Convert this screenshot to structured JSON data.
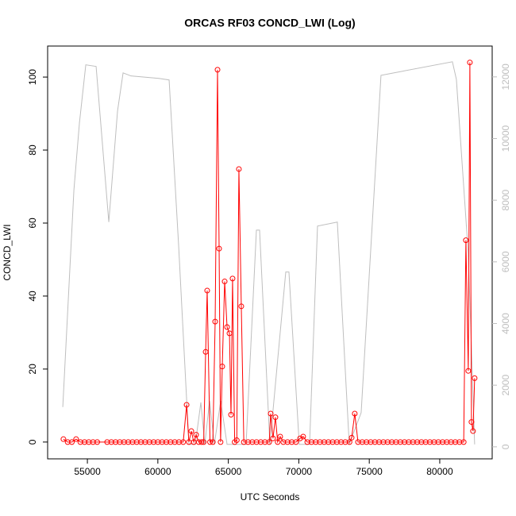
{
  "chart_data": {
    "type": "line",
    "title": "ORCAS RF03 CONCD_LWI (Log)",
    "x_label": "UTC Seconds",
    "y_label": "CONCD_LWI",
    "xlim": [
      52180,
      83720
    ],
    "xticks": [
      55000,
      60000,
      65000,
      70000,
      75000,
      80000
    ],
    "ylim": [
      -4.6,
      108.5
    ],
    "yticks": [
      0,
      20,
      40,
      60,
      80,
      100
    ],
    "y2lim": [
      -390,
      13000
    ],
    "y2ticks": [
      0,
      2000,
      4000,
      6000,
      8000,
      10000,
      12000
    ],
    "series": [
      {
        "color": "#bebebe",
        "axis": "y2",
        "x": [
          53255,
          54043,
          54437,
          54887,
          55619,
          56520,
          57139,
          57533,
          58097,
          60067,
          60799,
          61475,
          62206,
          62657,
          63051,
          63332,
          63670,
          64008,
          64458,
          64909,
          66260,
          66992,
          67217,
          67949,
          69075,
          69300,
          70032,
          70764,
          71327,
          72734,
          73579,
          74424,
          75831,
          76394,
          80898,
          81180,
          82025,
          82475
        ],
        "values": [
          1290,
          8320,
          10510,
          12390,
          12340,
          7290,
          10890,
          12130,
          12030,
          11950,
          11900,
          6520,
          80,
          80,
          1440,
          80,
          1490,
          80,
          1490,
          80,
          80,
          7030,
          7030,
          80,
          5670,
          5670,
          80,
          80,
          7160,
          7290,
          80,
          1110,
          12050,
          12100,
          12490,
          11920,
          6260,
          80
        ]
      },
      {
        "color": "#ff0000",
        "marker": "circle",
        "x": [
          53300,
          53600,
          53900,
          54200,
          54500,
          54800,
          55100,
          55400,
          55700,
          56400,
          56700,
          57000,
          57300,
          57600,
          57900,
          58200,
          58500,
          58800,
          59100,
          59400,
          59700,
          60000,
          60300,
          60600,
          60900,
          61200,
          61500,
          61800,
          62040,
          62200,
          62375,
          62550,
          62713,
          62900,
          63100,
          63250,
          63390,
          63500,
          63700,
          63900,
          64065,
          64233,
          64346,
          64450,
          64570,
          64740,
          64910,
          65080,
          65190,
          65300,
          65450,
          65600,
          65750,
          65920,
          66100,
          66400,
          66700,
          67000,
          67300,
          67600,
          67900,
          68005,
          68170,
          68340,
          68500,
          68680,
          68900,
          69200,
          69500,
          69800,
          70090,
          70310,
          70600,
          70900,
          71200,
          71500,
          71800,
          72100,
          72400,
          72700,
          73000,
          73300,
          73600,
          73750,
          73970,
          74200,
          74500,
          74800,
          75100,
          75400,
          75700,
          76000,
          76300,
          76600,
          76900,
          77200,
          77500,
          77800,
          78100,
          78400,
          78700,
          79000,
          79300,
          79600,
          79900,
          80200,
          80500,
          80800,
          81100,
          81400,
          81700,
          81855,
          82025,
          82137,
          82250,
          82360,
          82475
        ],
        "values": [
          0.8,
          0,
          0,
          0.8,
          0,
          0,
          0,
          0,
          0,
          0,
          0,
          0,
          0,
          0,
          0,
          0,
          0,
          0,
          0,
          0,
          0,
          0,
          0,
          0,
          0,
          0,
          0,
          0,
          10.2,
          0,
          3,
          0,
          2,
          0,
          0,
          0,
          24.7,
          41.5,
          0,
          0,
          33,
          102,
          53,
          0,
          20.7,
          44,
          31.5,
          29.8,
          7.5,
          44.8,
          0,
          0.5,
          74.8,
          37.2,
          0,
          0,
          0,
          0,
          0,
          0,
          0,
          7.8,
          1,
          6.8,
          0,
          1.5,
          0,
          0,
          0,
          0,
          1,
          1.5,
          0,
          0,
          0,
          0,
          0,
          0,
          0,
          0,
          0,
          0,
          0,
          1.2,
          7.8,
          0,
          0,
          0,
          0,
          0,
          0,
          0,
          0,
          0,
          0,
          0,
          0,
          0,
          0,
          0,
          0,
          0,
          0,
          0,
          0,
          0,
          0,
          0,
          0,
          0,
          0,
          55.3,
          19.5,
          104,
          5.5,
          3,
          17.5
        ]
      }
    ]
  }
}
